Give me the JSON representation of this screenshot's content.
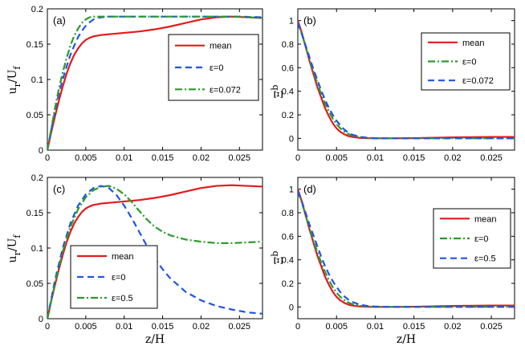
{
  "chart_data": [
    {
      "type": "line",
      "panel": "(a)",
      "xlabel": "z/H",
      "ylabel": "u_r/U_f",
      "xlim": [
        0,
        0.028
      ],
      "ylim": [
        0,
        0.2
      ],
      "xticks": [
        "0",
        "0.005",
        "0.01",
        "0.015",
        "0.02",
        "0.025"
      ],
      "yticks": [
        "0",
        "0.05",
        "0.1",
        "0.15",
        "0.2"
      ],
      "legend_position": "right",
      "series": [
        {
          "name": "mean",
          "color": "#e31a1c",
          "dash": "solid",
          "x": [
            0,
            0.0005,
            0.001,
            0.0015,
            0.002,
            0.0025,
            0.003,
            0.0035,
            0.004,
            0.0045,
            0.005,
            0.0055,
            0.006,
            0.007,
            0.008,
            0.01,
            0.012,
            0.014,
            0.016,
            0.018,
            0.02,
            0.022,
            0.024,
            0.026,
            0.028
          ],
          "y": [
            0,
            0.025,
            0.048,
            0.07,
            0.09,
            0.108,
            0.123,
            0.135,
            0.144,
            0.151,
            0.156,
            0.159,
            0.161,
            0.163,
            0.164,
            0.166,
            0.168,
            0.171,
            0.175,
            0.18,
            0.185,
            0.188,
            0.189,
            0.188,
            0.187
          ]
        },
        {
          "name": "ε=0",
          "color": "#2054e6",
          "dash": "dashed",
          "x": [
            0,
            0.0005,
            0.001,
            0.0015,
            0.002,
            0.0025,
            0.003,
            0.0035,
            0.004,
            0.0045,
            0.005,
            0.0055,
            0.006,
            0.0065,
            0.007,
            0.008,
            0.01,
            0.015,
            0.02,
            0.025,
            0.028
          ],
          "y": [
            0,
            0.028,
            0.055,
            0.08,
            0.1,
            0.118,
            0.135,
            0.148,
            0.16,
            0.169,
            0.176,
            0.181,
            0.185,
            0.187,
            0.188,
            0.189,
            0.189,
            0.189,
            0.189,
            0.189,
            0.188
          ]
        },
        {
          "name": "ε=0.072",
          "color": "#2a9a2a",
          "dash": "dashdot",
          "x": [
            0,
            0.0005,
            0.001,
            0.0015,
            0.002,
            0.0025,
            0.003,
            0.0035,
            0.004,
            0.0045,
            0.005,
            0.0055,
            0.006,
            0.0065,
            0.007,
            0.008,
            0.01,
            0.015,
            0.02,
            0.025,
            0.028
          ],
          "y": [
            0,
            0.03,
            0.06,
            0.087,
            0.11,
            0.13,
            0.148,
            0.162,
            0.172,
            0.18,
            0.185,
            0.188,
            0.189,
            0.189,
            0.189,
            0.189,
            0.189,
            0.189,
            0.189,
            0.189,
            0.187
          ]
        }
      ]
    },
    {
      "type": "line",
      "panel": "(b)",
      "xlabel": "",
      "ylabel": "Ξ^b",
      "xlim": [
        0,
        0.028
      ],
      "ylim": [
        -0.1,
        1.1
      ],
      "xticks": [
        "0",
        "0.005",
        "0.01",
        "0.015",
        "0.02",
        "0.025"
      ],
      "yticks": [
        "0",
        "0.2",
        "0.4",
        "0.6",
        "0.8",
        "1"
      ],
      "legend_position": "top-right",
      "series": [
        {
          "name": "mean",
          "color": "#e31a1c",
          "dash": "solid",
          "x": [
            0,
            0.0005,
            0.001,
            0.0015,
            0.002,
            0.0025,
            0.003,
            0.0035,
            0.004,
            0.0045,
            0.005,
            0.0055,
            0.006,
            0.0065,
            0.007,
            0.008,
            0.009,
            0.01,
            0.012,
            0.015,
            0.02,
            0.025,
            0.028
          ],
          "y": [
            1,
            0.9,
            0.78,
            0.66,
            0.55,
            0.44,
            0.35,
            0.26,
            0.19,
            0.13,
            0.085,
            0.055,
            0.035,
            0.02,
            0.012,
            0.004,
            0.001,
            0,
            0,
            0.002,
            0.008,
            0.012,
            0.012
          ]
        },
        {
          "name": "ε=0",
          "color": "#2a9a2a",
          "dash": "dashdot",
          "x": [
            0,
            0.0005,
            0.001,
            0.0015,
            0.002,
            0.0025,
            0.003,
            0.0035,
            0.004,
            0.0045,
            0.005,
            0.0055,
            0.006,
            0.0065,
            0.007,
            0.008,
            0.009,
            0.01,
            0.012,
            0.015,
            0.02,
            0.025,
            0.028
          ],
          "y": [
            0.98,
            0.89,
            0.78,
            0.67,
            0.57,
            0.47,
            0.38,
            0.3,
            0.23,
            0.17,
            0.12,
            0.085,
            0.058,
            0.038,
            0.024,
            0.01,
            0.004,
            0.001,
            0,
            0,
            0,
            0,
            0
          ]
        },
        {
          "name": "ε=0.072",
          "color": "#2054e6",
          "dash": "dashed",
          "x": [
            0,
            0.0005,
            0.001,
            0.0015,
            0.002,
            0.0025,
            0.003,
            0.0035,
            0.004,
            0.0045,
            0.005,
            0.0055,
            0.006,
            0.0065,
            0.007,
            0.008,
            0.009,
            0.01,
            0.012,
            0.015,
            0.02,
            0.025,
            0.028
          ],
          "y": [
            0.98,
            0.89,
            0.79,
            0.69,
            0.59,
            0.5,
            0.41,
            0.33,
            0.26,
            0.2,
            0.15,
            0.11,
            0.075,
            0.05,
            0.032,
            0.013,
            0.005,
            0.001,
            0,
            0,
            0,
            0,
            0
          ]
        }
      ]
    },
    {
      "type": "line",
      "panel": "(c)",
      "xlabel": "z/H",
      "ylabel": "u_r/U_f",
      "xlim": [
        0,
        0.028
      ],
      "ylim": [
        0,
        0.2
      ],
      "xticks": [
        "0",
        "0.005",
        "0.01",
        "0.015",
        "0.02",
        "0.025"
      ],
      "yticks": [
        "0",
        "0.05",
        "0.1",
        "0.15",
        "0.2"
      ],
      "legend_position": "bottom-left",
      "series": [
        {
          "name": "mean",
          "color": "#e31a1c",
          "dash": "solid",
          "x": [
            0,
            0.0005,
            0.001,
            0.0015,
            0.002,
            0.0025,
            0.003,
            0.0035,
            0.004,
            0.0045,
            0.005,
            0.0055,
            0.006,
            0.007,
            0.008,
            0.01,
            0.012,
            0.014,
            0.016,
            0.018,
            0.02,
            0.022,
            0.024,
            0.026,
            0.028
          ],
          "y": [
            0,
            0.025,
            0.048,
            0.07,
            0.09,
            0.108,
            0.123,
            0.135,
            0.144,
            0.151,
            0.156,
            0.159,
            0.161,
            0.163,
            0.164,
            0.166,
            0.168,
            0.171,
            0.175,
            0.18,
            0.185,
            0.188,
            0.189,
            0.188,
            0.187
          ]
        },
        {
          "name": "ε=0",
          "color": "#2054e6",
          "dash": "dashed",
          "x": [
            0,
            0.001,
            0.002,
            0.003,
            0.004,
            0.005,
            0.006,
            0.007,
            0.008,
            0.009,
            0.01,
            0.011,
            0.012,
            0.013,
            0.014,
            0.015,
            0.016,
            0.018,
            0.02,
            0.022,
            0.024,
            0.026,
            0.028
          ],
          "y": [
            0,
            0.055,
            0.1,
            0.135,
            0.16,
            0.176,
            0.185,
            0.188,
            0.185,
            0.175,
            0.16,
            0.142,
            0.122,
            0.102,
            0.085,
            0.07,
            0.057,
            0.038,
            0.026,
            0.018,
            0.013,
            0.009,
            0.007
          ]
        },
        {
          "name": "ε=0.5",
          "color": "#2a9a2a",
          "dash": "dashdot",
          "x": [
            0,
            0.001,
            0.002,
            0.003,
            0.004,
            0.005,
            0.006,
            0.007,
            0.008,
            0.009,
            0.01,
            0.011,
            0.012,
            0.013,
            0.014,
            0.015,
            0.016,
            0.018,
            0.02,
            0.022,
            0.024,
            0.026,
            0.028
          ],
          "y": [
            0,
            0.05,
            0.095,
            0.13,
            0.155,
            0.172,
            0.182,
            0.187,
            0.188,
            0.184,
            0.176,
            0.165,
            0.152,
            0.14,
            0.13,
            0.123,
            0.118,
            0.112,
            0.109,
            0.107,
            0.107,
            0.108,
            0.109
          ]
        }
      ]
    },
    {
      "type": "line",
      "panel": "(d)",
      "xlabel": "z/H",
      "ylabel": "Ξ^b",
      "xlim": [
        0,
        0.028
      ],
      "ylim": [
        -0.1,
        1.1
      ],
      "xticks": [
        "0",
        "0.005",
        "0.01",
        "0.015",
        "0.02",
        "0.025"
      ],
      "yticks": [
        "0",
        "0.2",
        "0.4",
        "0.6",
        "0.8",
        "1"
      ],
      "legend_position": "right",
      "series": [
        {
          "name": "mean",
          "color": "#e31a1c",
          "dash": "solid",
          "x": [
            0,
            0.0005,
            0.001,
            0.0015,
            0.002,
            0.0025,
            0.003,
            0.0035,
            0.004,
            0.0045,
            0.005,
            0.0055,
            0.006,
            0.0065,
            0.007,
            0.008,
            0.009,
            0.01,
            0.012,
            0.015,
            0.02,
            0.025,
            0.028
          ],
          "y": [
            1,
            0.9,
            0.78,
            0.66,
            0.55,
            0.44,
            0.35,
            0.26,
            0.19,
            0.13,
            0.085,
            0.055,
            0.035,
            0.02,
            0.012,
            0.004,
            0.001,
            0,
            0,
            0.002,
            0.008,
            0.012,
            0.012
          ]
        },
        {
          "name": "ε=0",
          "color": "#2a9a2a",
          "dash": "dashdot",
          "x": [
            0,
            0.0005,
            0.001,
            0.0015,
            0.002,
            0.0025,
            0.003,
            0.0035,
            0.004,
            0.0045,
            0.005,
            0.0055,
            0.006,
            0.0065,
            0.007,
            0.008,
            0.009,
            0.01,
            0.012,
            0.015,
            0.02,
            0.025,
            0.028
          ],
          "y": [
            0.98,
            0.89,
            0.78,
            0.67,
            0.57,
            0.47,
            0.38,
            0.3,
            0.23,
            0.17,
            0.12,
            0.085,
            0.058,
            0.038,
            0.024,
            0.01,
            0.004,
            0.001,
            0,
            0,
            0,
            0,
            0
          ]
        },
        {
          "name": "ε=0.5",
          "color": "#2054e6",
          "dash": "dashed",
          "x": [
            0,
            0.0005,
            0.001,
            0.0015,
            0.002,
            0.0025,
            0.003,
            0.0035,
            0.004,
            0.0045,
            0.005,
            0.0055,
            0.006,
            0.0065,
            0.007,
            0.008,
            0.009,
            0.01,
            0.012,
            0.015,
            0.02,
            0.025,
            0.028
          ],
          "y": [
            0.98,
            0.9,
            0.8,
            0.7,
            0.61,
            0.52,
            0.43,
            0.35,
            0.28,
            0.22,
            0.17,
            0.125,
            0.09,
            0.063,
            0.043,
            0.02,
            0.008,
            0.003,
            0,
            0,
            0,
            0,
            0
          ]
        }
      ]
    }
  ]
}
